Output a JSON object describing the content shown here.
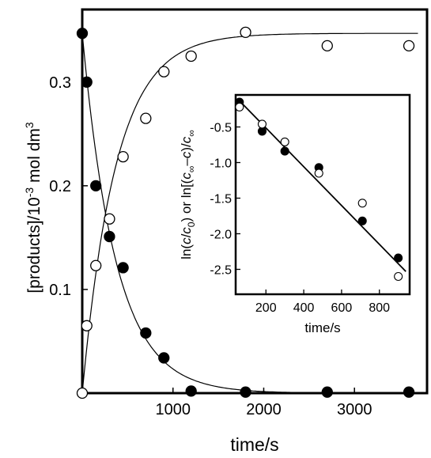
{
  "chart_data": [
    {
      "type": "scatter",
      "xlabel": "time/s",
      "ylabel_parts": [
        "[products]/10",
        "-3",
        " mol dm",
        "3"
      ],
      "xlim": [
        0,
        3800
      ],
      "ylim": [
        0,
        0.37
      ],
      "x_ticks": [
        1000,
        2000,
        3000
      ],
      "x_tick_labels": [
        "1000",
        "2000",
        "3000"
      ],
      "y_ticks": [
        0.1,
        0.2,
        0.3
      ],
      "y_tick_labels": [
        "0.1",
        "0.2",
        "0.3"
      ],
      "grid": false,
      "series": [
        {
          "marker": "filled-circle",
          "x": [
            0,
            50,
            150,
            300,
            450,
            700,
            900,
            1200,
            1800,
            2700,
            3600
          ],
          "y": [
            0.347,
            0.3,
            0.2,
            0.151,
            0.121,
            0.058,
            0.034,
            0.002,
            0.001,
            0.001,
            0.001
          ]
        },
        {
          "marker": "open-circle",
          "x": [
            0,
            50,
            150,
            300,
            450,
            700,
            900,
            1200,
            1800,
            2700,
            3600
          ],
          "y": [
            0.0,
            0.065,
            0.123,
            0.168,
            0.228,
            0.265,
            0.31,
            0.325,
            0.348,
            0.335,
            0.335
          ]
        },
        {
          "type": "line",
          "style": "fit-decay",
          "y0": 0.347,
          "k": 0.0027,
          "x_range": [
            0,
            3700
          ]
        },
        {
          "type": "line",
          "style": "fit-growth",
          "y_inf": 0.347,
          "k": 0.0027,
          "x_range": [
            0,
            3700
          ]
        }
      ]
    },
    {
      "type": "scatter",
      "inset": true,
      "xlabel": "time/s",
      "ylabel_parts": [
        "ln(",
        "c",
        "/",
        "c",
        "0",
        ") or ln[(",
        "c",
        "∞",
        "–",
        "c",
        ")/",
        "c",
        "∞"
      ],
      "xlim": [
        40,
        960
      ],
      "ylim": [
        -2.85,
        -0.05
      ],
      "x_ticks": [
        200,
        400,
        600,
        800
      ],
      "x_tick_labels": [
        "200",
        "400",
        "600",
        "800"
      ],
      "y_ticks": [
        -0.5,
        -1.0,
        -1.5,
        -2.0,
        -2.5
      ],
      "y_tick_labels": [
        "-0.5",
        "-1.0",
        "-1.5",
        "-2.0",
        "-2.5"
      ],
      "grid": false,
      "series": [
        {
          "marker": "filled-circle",
          "x": [
            60,
            180,
            300,
            480,
            710,
            900
          ],
          "y": [
            -0.15,
            -0.56,
            -0.84,
            -1.07,
            -1.82,
            -2.34
          ]
        },
        {
          "marker": "open-circle",
          "x": [
            60,
            180,
            300,
            480,
            710,
            900
          ],
          "y": [
            -0.22,
            -0.46,
            -0.71,
            -1.15,
            -1.57,
            -2.6
          ]
        },
        {
          "type": "line",
          "style": "fit",
          "x": [
            50,
            940
          ],
          "y": [
            -0.105,
            -2.53
          ]
        }
      ]
    }
  ]
}
